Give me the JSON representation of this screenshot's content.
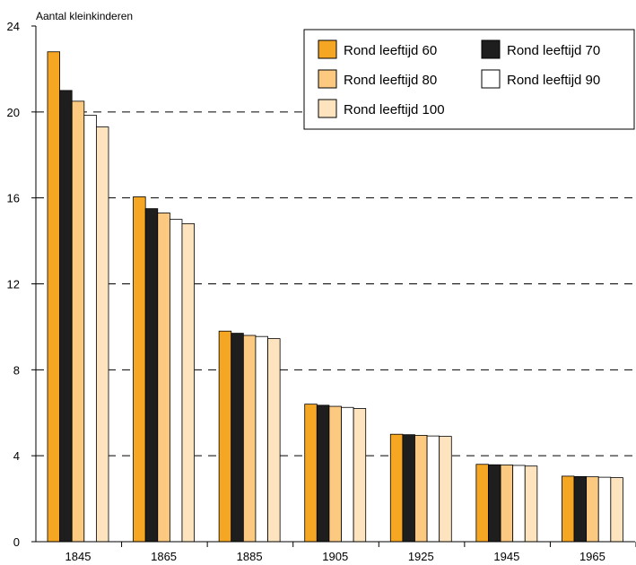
{
  "chart_data": {
    "type": "bar",
    "ylabel": "Aantal kleinkinderen",
    "xlabel": "",
    "ylim": [
      0,
      24
    ],
    "yticks": [
      0,
      4,
      8,
      12,
      16,
      20,
      24
    ],
    "grid": "dashed horizontal",
    "legend_position": "top-right",
    "categories": [
      "1845",
      "1865",
      "1885",
      "1905",
      "1925",
      "1945",
      "1965"
    ],
    "series": [
      {
        "name": "Rond leeftijd 60",
        "color": "#f5a623",
        "values": [
          22.8,
          16.05,
          9.8,
          6.4,
          5.0,
          3.6,
          3.05
        ]
      },
      {
        "name": "Rond leeftijd 70",
        "color": "#1e1e1e",
        "values": [
          21.0,
          15.5,
          9.7,
          6.35,
          4.98,
          3.58,
          3.03
        ]
      },
      {
        "name": "Rond leeftijd 80",
        "color": "#fbc97f",
        "values": [
          20.5,
          15.3,
          9.6,
          6.3,
          4.95,
          3.57,
          3.02
        ]
      },
      {
        "name": "Rond leeftijd 90",
        "color": "#ffffff",
        "values": [
          19.85,
          15.0,
          9.55,
          6.25,
          4.92,
          3.55,
          3.0
        ]
      },
      {
        "name": "Rond leeftijd 100",
        "color": "#fde4bf",
        "values": [
          19.3,
          14.8,
          9.45,
          6.2,
          4.9,
          3.52,
          2.98
        ]
      }
    ]
  }
}
